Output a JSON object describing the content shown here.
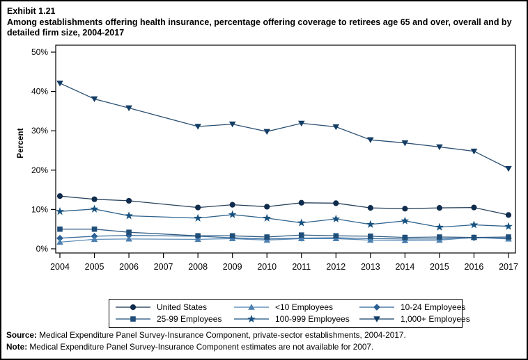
{
  "header": {
    "exhibit_label": "Exhibit 1.21",
    "title": "Among establishments offering health insurance, percentage offering coverage to retirees age 65 and over, overall and by detailed firm size, 2004-2017"
  },
  "chart_data": {
    "type": "line",
    "x": [
      2004,
      2005,
      2006,
      2007,
      2008,
      2009,
      2010,
      2011,
      2012,
      2013,
      2014,
      2015,
      2016,
      2017
    ],
    "missing_years": [
      2007
    ],
    "ylabel": "Percent",
    "ylim": [
      0,
      50
    ],
    "yticks": [
      "0%",
      "10%",
      "20%",
      "30%",
      "40%",
      "50%"
    ],
    "grid": false,
    "legend_position": "bottom",
    "series": [
      {
        "name": "United States",
        "marker": "circle",
        "color": "#102c4c",
        "values": [
          13.4,
          12.6,
          12.2,
          null,
          10.5,
          11.2,
          10.7,
          11.7,
          11.6,
          10.4,
          10.2,
          10.4,
          10.5,
          8.6
        ]
      },
      {
        "name": "<10 Employees",
        "marker": "triangle-up",
        "color": "#4b7fb0",
        "values": [
          1.7,
          2.4,
          2.5,
          null,
          2.4,
          2.6,
          2.2,
          2.6,
          2.6,
          2.2,
          2.1,
          2.2,
          2.9,
          2.5
        ]
      },
      {
        "name": "10-24 Employees",
        "marker": "diamond",
        "color": "#2a6094",
        "values": [
          2.7,
          3.2,
          3.4,
          null,
          3.2,
          2.8,
          2.5,
          2.7,
          2.8,
          2.6,
          2.5,
          2.5,
          2.8,
          2.7
        ]
      },
      {
        "name": "25-99 Employees",
        "marker": "square",
        "color": "#1f4e79",
        "values": [
          5.0,
          5.0,
          4.2,
          null,
          3.3,
          3.3,
          3.0,
          3.5,
          3.3,
          3.2,
          2.9,
          3.0,
          2.9,
          3.0
        ]
      },
      {
        "name": "100-999 Employees",
        "marker": "star",
        "color": "#17517f",
        "values": [
          9.5,
          10.1,
          8.4,
          null,
          7.8,
          8.7,
          7.8,
          6.6,
          7.6,
          6.2,
          7.1,
          5.5,
          6.1,
          5.7
        ]
      },
      {
        "name": "1,000+ Employees",
        "marker": "triangle-down",
        "color": "#133c64",
        "values": [
          42.1,
          38.1,
          35.8,
          null,
          31.1,
          31.7,
          29.8,
          31.9,
          31.0,
          27.7,
          26.9,
          25.9,
          24.8,
          20.4
        ]
      }
    ],
    "legend_order": [
      "United States",
      "<10 Employees",
      "10-24 Employees",
      "25-99 Employees",
      "100-999 Employees",
      "1,000+ Employees"
    ]
  },
  "footer": {
    "source_label": "Source:",
    "source_text": " Medical Expenditure Panel Survey-Insurance Component, private-sector establishments, 2004-2017.",
    "note_label": "Note:",
    "note_text": " Medical Expenditure Panel Survey-Insurance Component estimates are not available for 2007."
  }
}
